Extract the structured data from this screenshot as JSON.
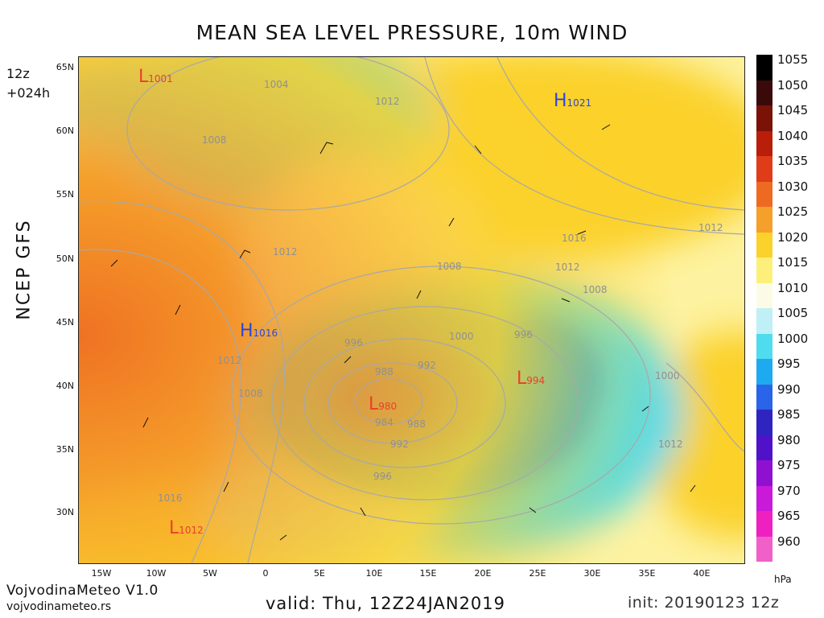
{
  "title": "MEAN SEA LEVEL PRESSURE, 10m WIND",
  "model": "NCEP GFS",
  "run_hour": "12z",
  "forecast_step": "+024h",
  "valid_text": "valid: Thu, 12Z24JAN2019",
  "init_text": "init: 20190123 12z",
  "brand_name": "VojvodinaMeteo V1.0",
  "brand_site": "vojvodinameteo.rs",
  "colorbar": {
    "unit": "hPa",
    "labels": [
      "1055",
      "1050",
      "1045",
      "1040",
      "1035",
      "1030",
      "1025",
      "1020",
      "1015",
      "1010",
      "1005",
      "1000",
      "995",
      "990",
      "985",
      "980",
      "975",
      "970",
      "965",
      "960"
    ],
    "colors": [
      "#000000",
      "#3a0a0a",
      "#7a1208",
      "#b81e0a",
      "#e03c18",
      "#ee6a22",
      "#f5a02a",
      "#fbd12c",
      "#fdf07a",
      "#fbfbe6",
      "#bff0f5",
      "#4fdcee",
      "#1eaaf0",
      "#2a64e8",
      "#3024c0",
      "#5012c8",
      "#9010d2",
      "#c81ad8",
      "#ee20c0",
      "#f060c8"
    ]
  },
  "lat_labels": [
    "65N",
    "60N",
    "55N",
    "50N",
    "45N",
    "40N",
    "35N",
    "30N"
  ],
  "lon_labels": [
    "15W",
    "10W",
    "5W",
    "0",
    "5E",
    "10E",
    "15E",
    "20E",
    "25E",
    "30E",
    "35E",
    "40E"
  ],
  "centers": [
    {
      "type": "L",
      "value": "1001",
      "color": "#e8402a"
    },
    {
      "type": "H",
      "value": "1021",
      "color": "#2a48d8"
    },
    {
      "type": "H",
      "value": "1016",
      "color": "#2a48d8"
    },
    {
      "type": "L",
      "value": "994",
      "color": "#e8402a"
    },
    {
      "type": "L",
      "value": "980",
      "color": "#e8402a"
    },
    {
      "type": "L",
      "value": "1012",
      "color": "#e8402a"
    }
  ],
  "isobar_labels": [
    "1004",
    "1012",
    "1008",
    "1012",
    "1016",
    "1012",
    "1008",
    "1012",
    "1008",
    "1000",
    "996",
    "996",
    "992",
    "988",
    "984",
    "988",
    "992",
    "996",
    "1012",
    "1008",
    "1012",
    "1016",
    "1000"
  ]
}
